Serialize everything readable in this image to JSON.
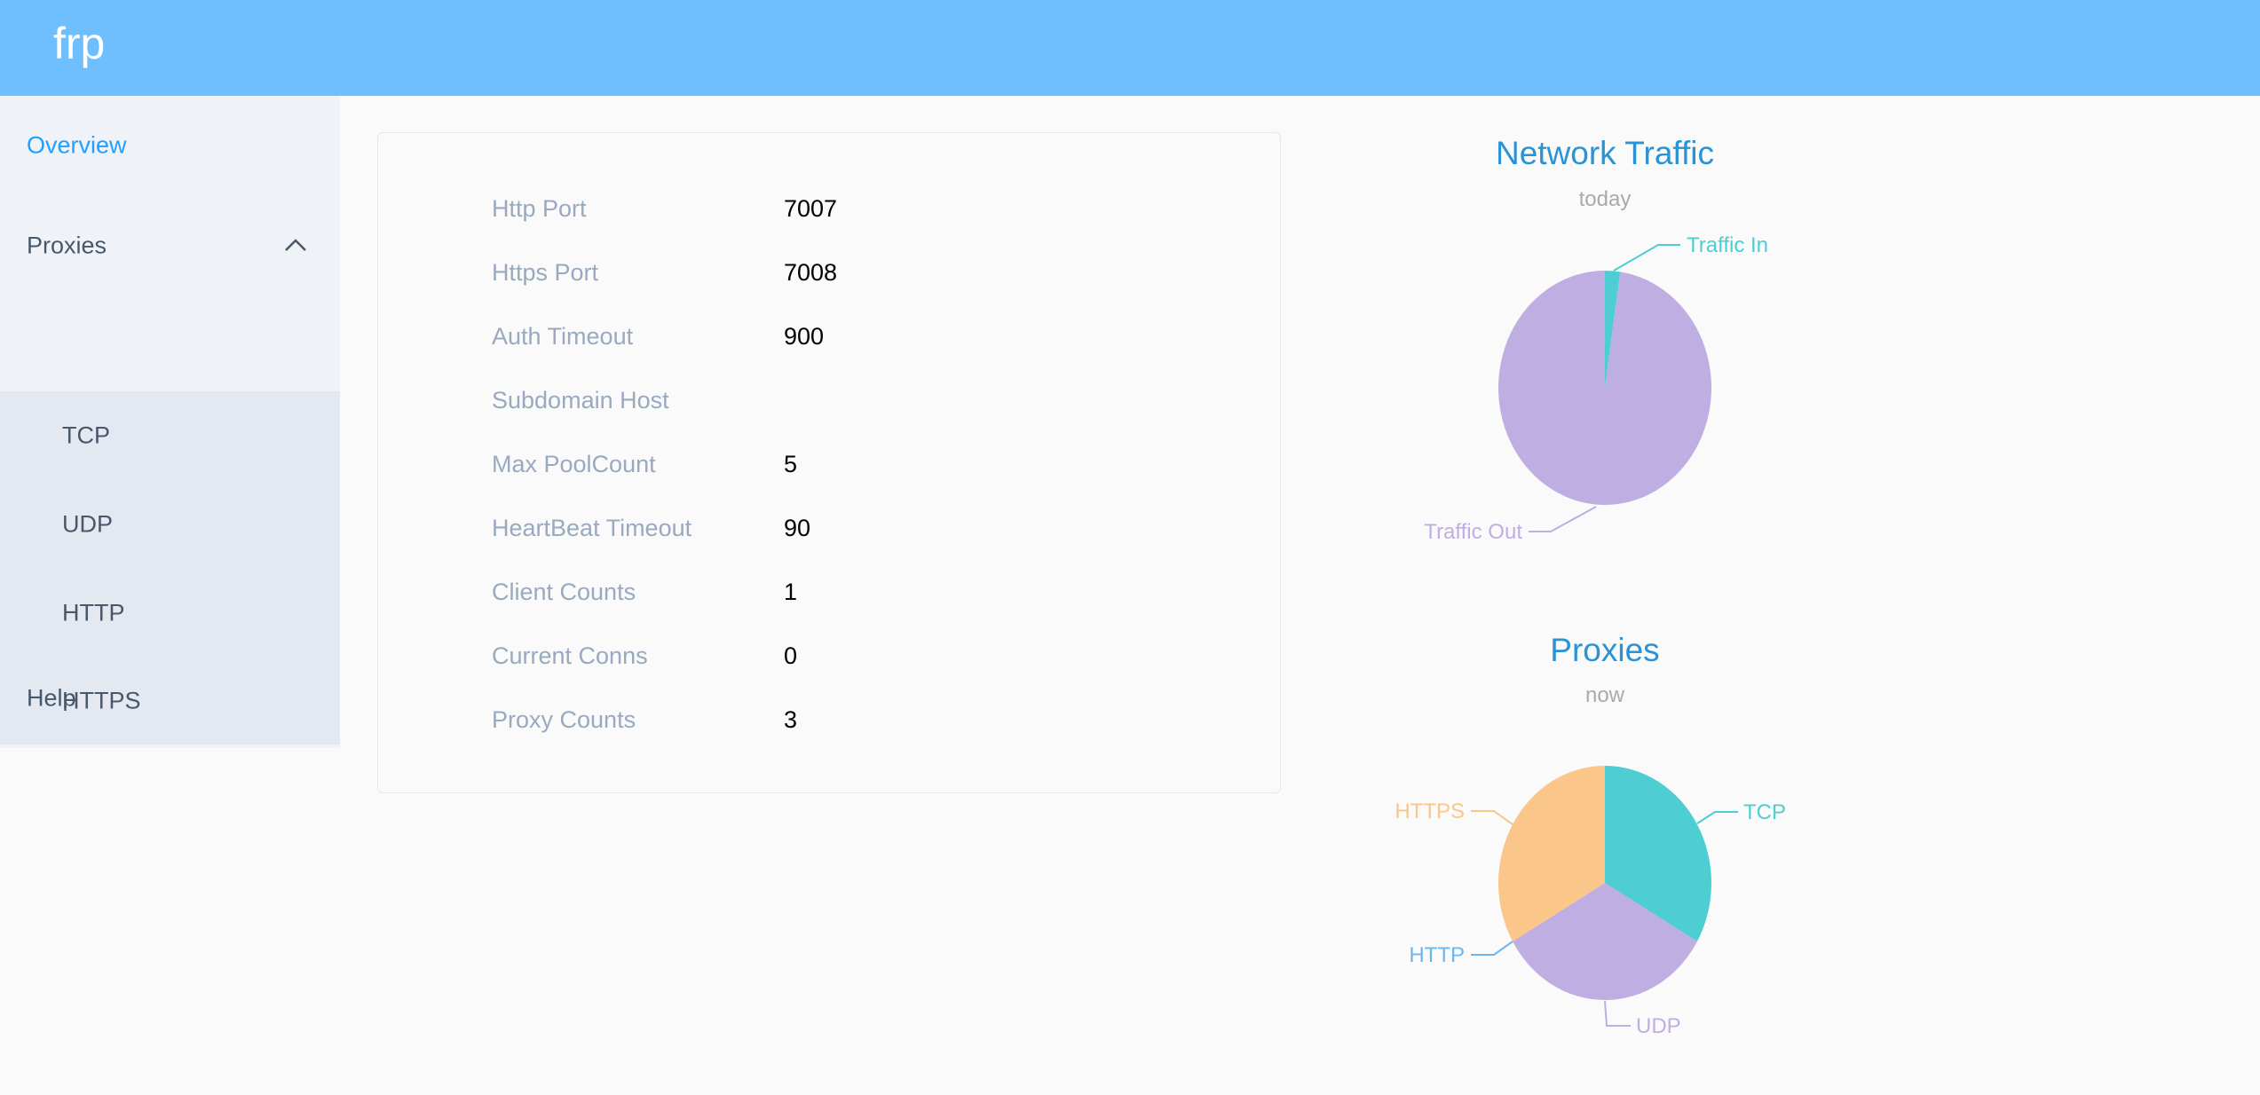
{
  "app": {
    "title": "frp"
  },
  "sidebar": {
    "overview": "Overview",
    "proxies": "Proxies",
    "proxy_items": [
      "TCP",
      "UDP",
      "HTTP",
      "HTTPS"
    ],
    "help": "Help",
    "active_color": "#20a0ff"
  },
  "server_info": [
    {
      "label": "Http Port",
      "value": "7007"
    },
    {
      "label": "Https Port",
      "value": "7008"
    },
    {
      "label": "Auth Timeout",
      "value": "900"
    },
    {
      "label": "Subdomain Host",
      "value": ""
    },
    {
      "label": "Max PoolCount",
      "value": "5"
    },
    {
      "label": "HeartBeat Timeout",
      "value": "90"
    },
    {
      "label": "Client Counts",
      "value": "1"
    },
    {
      "label": "Current Conns",
      "value": "0"
    },
    {
      "label": "Proxy Counts",
      "value": "3"
    }
  ],
  "chart_data": [
    {
      "type": "pie",
      "title": "Network Traffic",
      "subtitle": "today",
      "categories": [
        "Traffic In",
        "Traffic Out"
      ],
      "values": [
        2.3,
        97.7
      ],
      "colors": [
        "#4ecdd2",
        "#bfaee2"
      ]
    },
    {
      "type": "pie",
      "title": "Proxies",
      "subtitle": "now",
      "categories": [
        "TCP",
        "UDP",
        "HTTP",
        "HTTPS"
      ],
      "values": [
        1,
        1,
        0,
        1
      ],
      "colors": [
        "#4ecdd2",
        "#bfaee2",
        "#6cb6f0",
        "#fbc68a"
      ]
    }
  ]
}
